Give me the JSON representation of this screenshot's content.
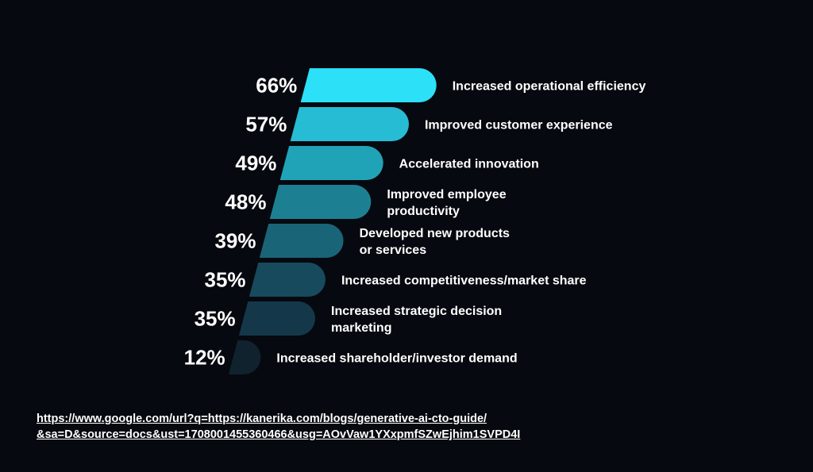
{
  "chart_data": {
    "type": "bar",
    "orientation": "horizontal",
    "title": "",
    "xlabel": "",
    "ylabel": "",
    "value_suffix": "%",
    "xlim": [
      0,
      66
    ],
    "categories": [
      [
        "Increased operational efficiency"
      ],
      [
        "Improved customer experience"
      ],
      [
        "Accelerated innovation"
      ],
      [
        "Improved employee",
        "productivity"
      ],
      [
        "Developed new products",
        "or services"
      ],
      [
        "Increased competitiveness/market share"
      ],
      [
        "Increased strategic decision",
        "marketing"
      ],
      [
        "Increased shareholder/investor demand"
      ]
    ],
    "values": [
      66,
      57,
      49,
      48,
      39,
      35,
      35,
      12
    ],
    "labels": [
      "66%",
      "57%",
      "49%",
      "48%",
      "39%",
      "35%",
      "35%",
      "12%"
    ],
    "colors": [
      "#2ce0f7",
      "#26bcd4",
      "#21a3b7",
      "#1d8092",
      "#1a6477",
      "#174a5c",
      "#14384a",
      "#11222f"
    ]
  },
  "source": {
    "line1": "https://www.google.com/url?q=https://kanerika.com/blogs/generative-ai-cto-guide/",
    "line2": "&sa=D&source=docs&ust=1708001455360466&usg=AOvVaw1YXxpmfSZwEjhim1SVPD4I"
  }
}
